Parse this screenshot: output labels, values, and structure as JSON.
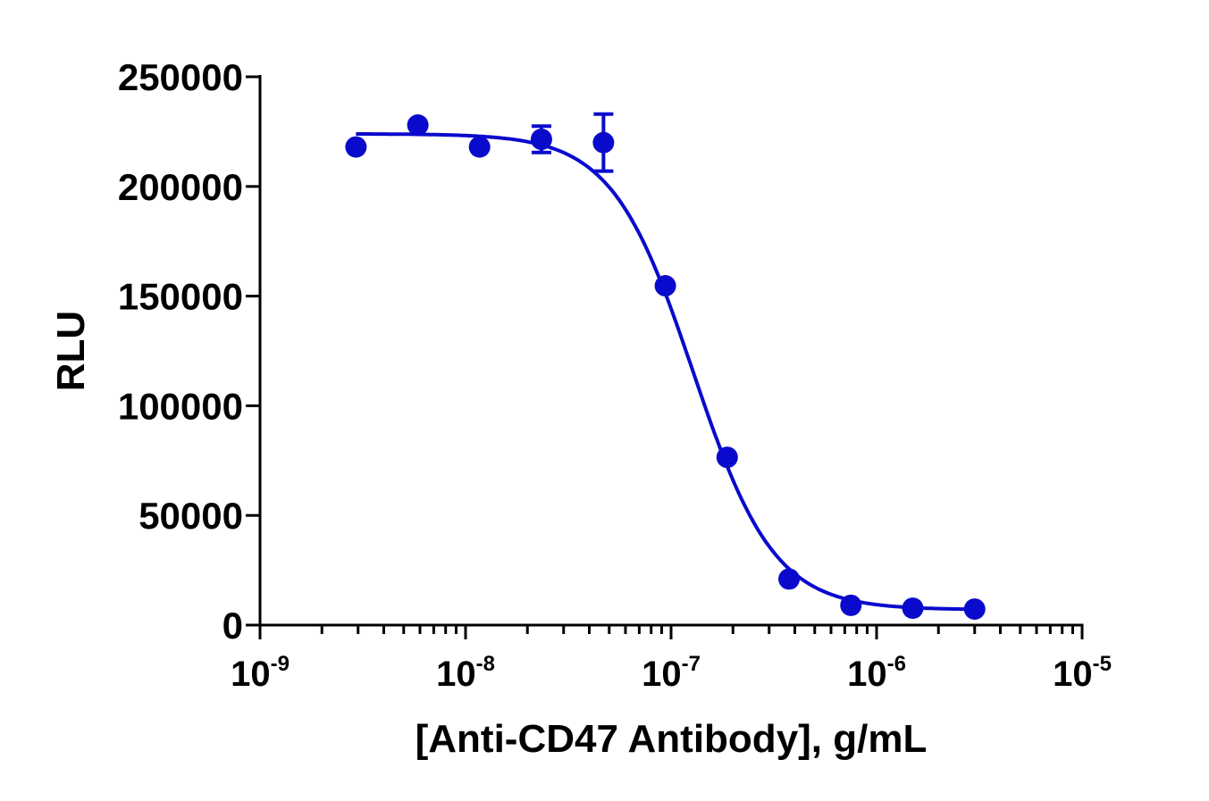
{
  "chart_data": {
    "type": "scatter",
    "title": "",
    "xlabel": "[Anti-CD47 Antibody], g/mL",
    "ylabel": "RLU",
    "x_scale": "log",
    "xlim": [
      1e-09,
      1e-05
    ],
    "ylim": [
      0,
      250000
    ],
    "grid": false,
    "legend": "none",
    "x_ticks": [
      {
        "base": "10",
        "exp": "-9"
      },
      {
        "base": "10",
        "exp": "-8"
      },
      {
        "base": "10",
        "exp": "-7"
      },
      {
        "base": "10",
        "exp": "-6"
      },
      {
        "base": "10",
        "exp": "-5"
      }
    ],
    "y_ticks": [
      "0",
      "50000",
      "100000",
      "150000",
      "200000",
      "250000"
    ],
    "color": "#0a0acc",
    "series": [
      {
        "x": [
          2.93e-09,
          5.86e-09,
          1.17e-08,
          2.34e-08,
          4.69e-08,
          9.38e-08,
          1.875e-07,
          3.75e-07,
          7.5e-07,
          1.5e-06,
          3e-06
        ],
        "y": [
          218000,
          228000,
          218000,
          221500,
          220000,
          154700,
          76500,
          21000,
          9000,
          7700,
          7300
        ],
        "error": [
          0,
          0,
          0,
          6000,
          13000,
          0,
          0,
          0,
          0,
          0,
          0
        ]
      }
    ],
    "fit": {
      "model": "4PL",
      "top": 224000,
      "bottom": 7000,
      "ic50": 1.28e-07,
      "hill_slope": -2.2,
      "x_range": [
        2.93e-09,
        3e-06
      ]
    }
  }
}
